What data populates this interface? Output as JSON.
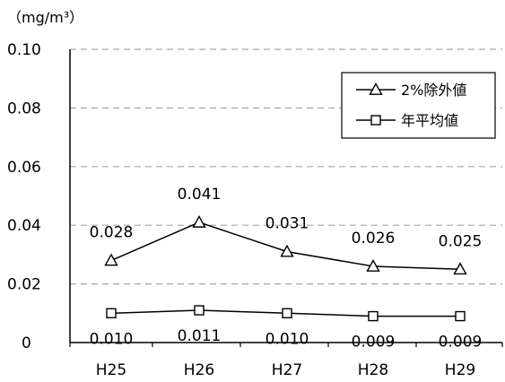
{
  "chart_data": {
    "type": "line",
    "unit_label": "（mg/m³）",
    "categories": [
      "H25",
      "H26",
      "H27",
      "H28",
      "H29"
    ],
    "ylim": [
      0,
      0.1
    ],
    "yticks": [
      {
        "value": 0,
        "label": "0"
      },
      {
        "value": 0.02,
        "label": "0.02"
      },
      {
        "value": 0.04,
        "label": "0.04"
      },
      {
        "value": 0.06,
        "label": "0.06"
      },
      {
        "value": 0.08,
        "label": "0.08"
      },
      {
        "value": 0.1,
        "label": "0.10"
      }
    ],
    "grid": true,
    "legend_position": "top-right",
    "series": [
      {
        "name": "2%除外値",
        "marker": "triangle",
        "values": [
          0.028,
          0.041,
          0.031,
          0.026,
          0.025
        ],
        "labels": [
          "0.028",
          "0.041",
          "0.031",
          "0.026",
          "0.025"
        ],
        "label_position": "above"
      },
      {
        "name": "年平均値",
        "marker": "square",
        "values": [
          0.01,
          0.011,
          0.01,
          0.009,
          0.009
        ],
        "labels": [
          "0.010",
          "0.011",
          "0.010",
          "0.009",
          "0.009"
        ],
        "label_position": "below"
      }
    ],
    "colors": {
      "line": "#000000",
      "grid": "#a6a6a6",
      "marker_fill": "#ffffff"
    }
  }
}
